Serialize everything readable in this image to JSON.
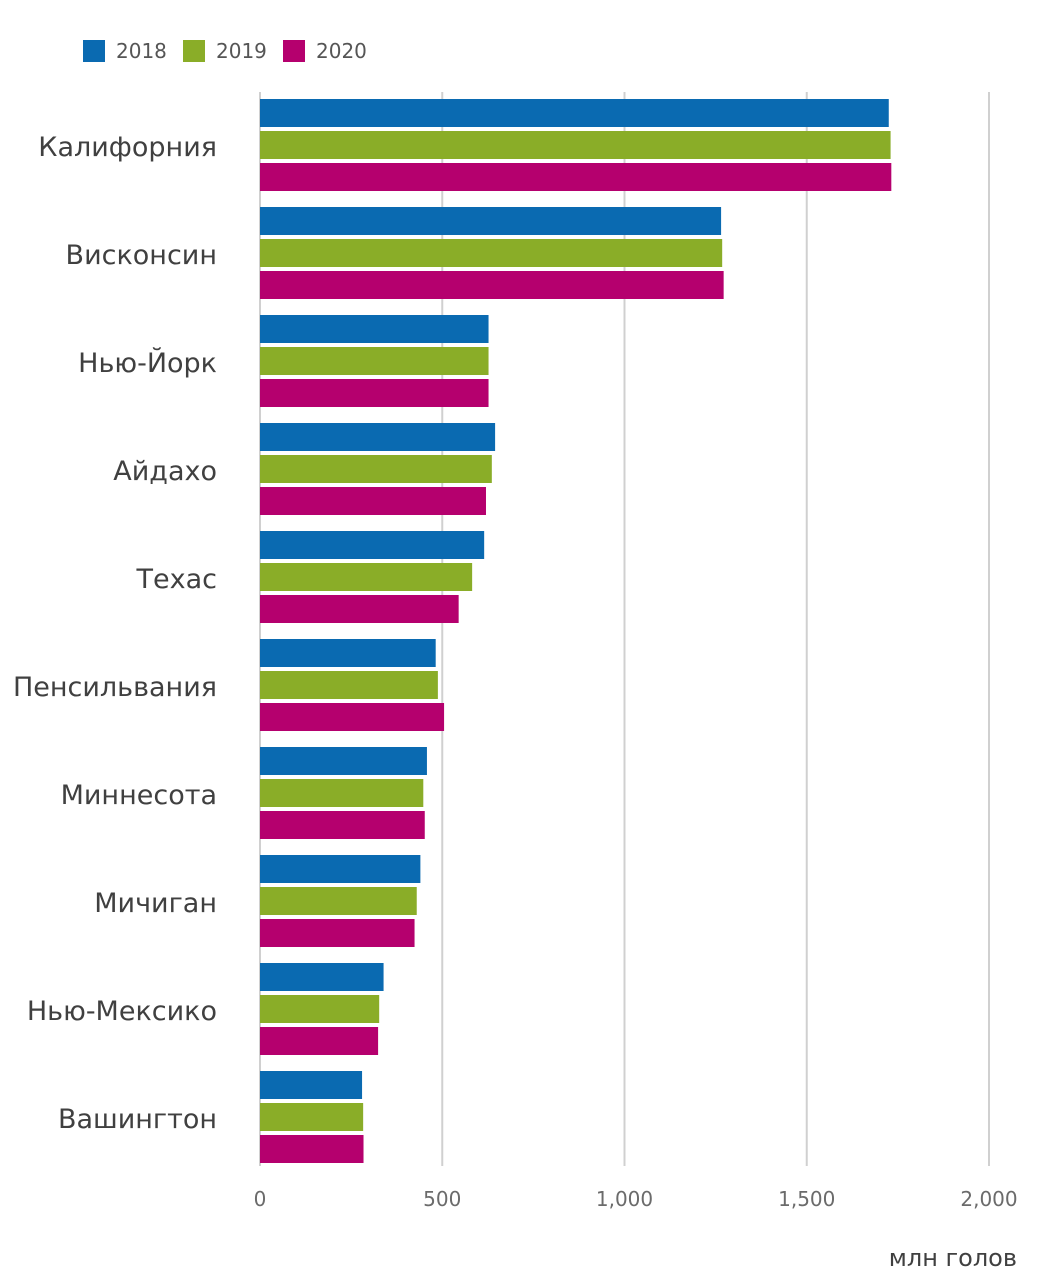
{
  "chart_data": {
    "type": "bar",
    "orientation": "horizontal",
    "categories": [
      "Калифорния",
      "Висконсин",
      "Нью-Йорк",
      "Айдахо",
      "Техас",
      "Пенсильвания",
      "Миннесота",
      "Мичиган",
      "Нью-Мексико",
      "Вашингтон"
    ],
    "series": [
      {
        "name": "2018",
        "color": "#0a6ab1",
        "values": [
          1725,
          1265,
          627,
          645,
          615,
          482,
          458,
          440,
          339,
          280
        ]
      },
      {
        "name": "2019",
        "color": "#8aad28",
        "values": [
          1730,
          1268,
          627,
          636,
          582,
          488,
          448,
          430,
          327,
          283
        ]
      },
      {
        "name": "2020",
        "color": "#b5006e",
        "values": [
          1732,
          1272,
          627,
          620,
          545,
          505,
          452,
          424,
          324,
          284
        ]
      }
    ],
    "xlim": [
      0,
      2000
    ],
    "xticks": [
      0,
      500,
      1000,
      1500,
      2000
    ],
    "xtick_labels": [
      "0",
      "500",
      "1,000",
      "1,500",
      "2,000"
    ],
    "xlabel": "млн голов",
    "grid": true,
    "legend_position": "top-left"
  }
}
